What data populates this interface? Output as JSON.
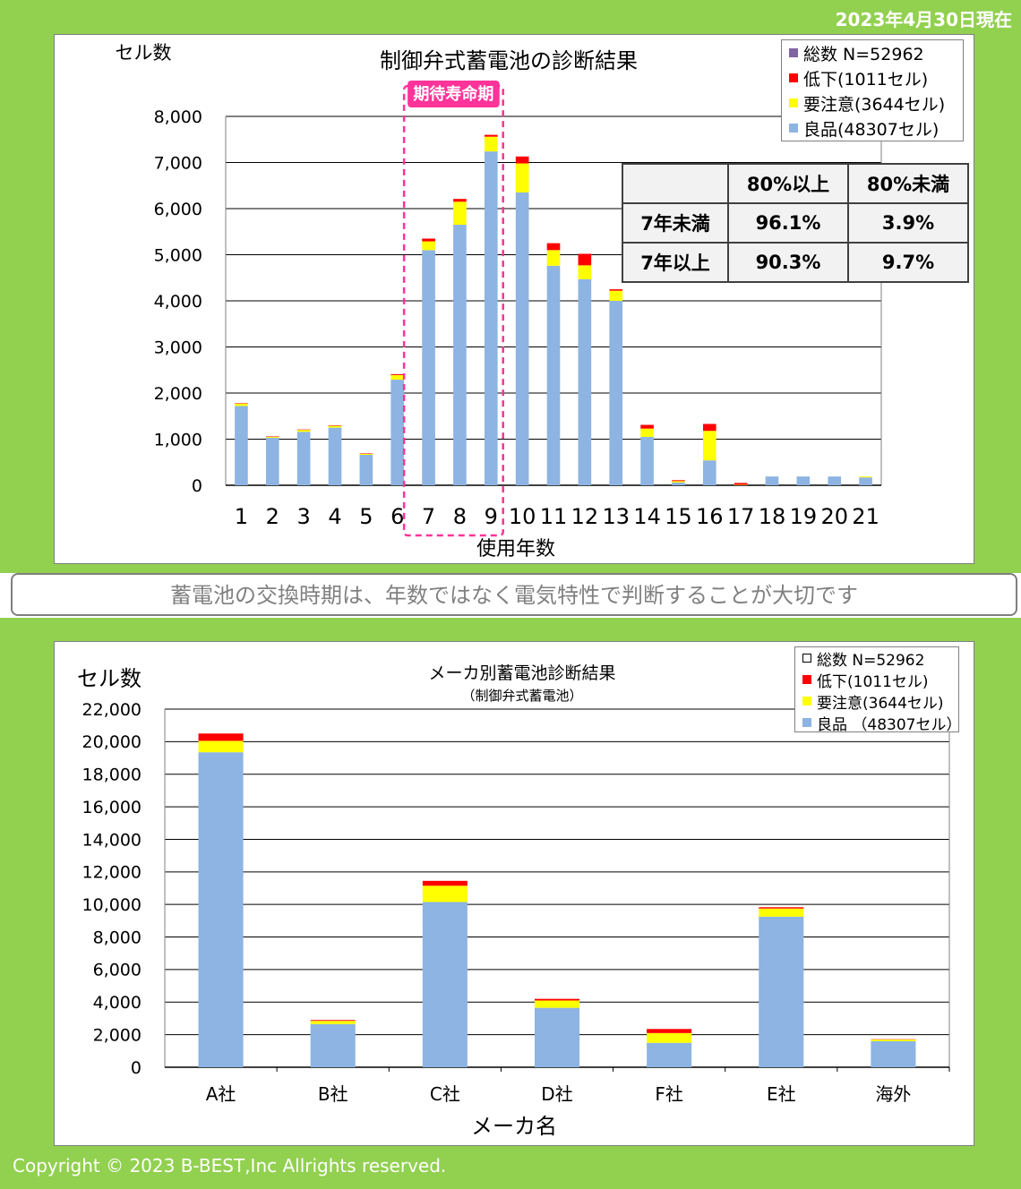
{
  "colors": {
    "frame": "#92d050",
    "good": "#8db4e2",
    "caution": "#ffff00",
    "low": "#ff0000",
    "total": "#8064a2",
    "expected_box": "#ff3399"
  },
  "date_label": "2023年4月30日現在",
  "message": "蓄電池の交換時期は、年数ではなく電気特性で判断することが大切です",
  "copyright": "Copyright © 2023 B-BEST,Inc Allrights reserved.",
  "age_table": {
    "headers": [
      "",
      "80%以上",
      "80%未満"
    ],
    "rows": [
      {
        "label": "7年未満",
        "a": "96.1%",
        "b": "3.9%"
      },
      {
        "label": "7年以上",
        "a": "90.3%",
        "b": "9.7%"
      }
    ]
  },
  "chart_data": [
    {
      "type": "bar",
      "stacked": true,
      "title": "制御弁式蓄電池の診断結果",
      "ylabel": "セル数",
      "xlabel": "使用年数",
      "ylim": [
        0,
        8000
      ],
      "y_ticks": [
        "0",
        "1,000",
        "2,000",
        "3,000",
        "4,000",
        "5,000",
        "6,000",
        "7,000",
        "8,000"
      ],
      "grid": true,
      "annotation": "期待寿命期",
      "annotation_span": [
        "7",
        "9"
      ],
      "legend_position": "top-right",
      "legend": [
        "総数 N=52962",
        "低下(1011セル)",
        "要注意(3644セル)",
        "良品(48307セル)"
      ],
      "categories": [
        "1",
        "2",
        "3",
        "4",
        "5",
        "6",
        "7",
        "8",
        "9",
        "10",
        "11",
        "12",
        "13",
        "14",
        "15",
        "16",
        "17",
        "18",
        "19",
        "20",
        "21"
      ],
      "series": [
        {
          "name": "良品(48307セル)",
          "values": [
            1720,
            1030,
            1160,
            1250,
            660,
            2290,
            5100,
            5650,
            7240,
            6350,
            4760,
            4470,
            4000,
            1050,
            60,
            540,
            0,
            190,
            190,
            190,
            170
          ]
        },
        {
          "name": "要注意(3644セル)",
          "values": [
            50,
            20,
            40,
            40,
            20,
            100,
            190,
            500,
            320,
            630,
            340,
            300,
            220,
            180,
            30,
            640,
            10,
            0,
            0,
            0,
            20
          ]
        },
        {
          "name": "低下(1011セル)",
          "values": [
            10,
            10,
            10,
            10,
            10,
            20,
            60,
            60,
            40,
            150,
            150,
            250,
            30,
            80,
            20,
            150,
            40,
            0,
            0,
            0,
            0
          ]
        }
      ]
    },
    {
      "type": "bar",
      "stacked": true,
      "title": "メーカ別蓄電池診断結果",
      "subtitle": "（制御弁式蓄電池）",
      "ylabel": "セル数",
      "xlabel": "メーカ名",
      "ylim": [
        0,
        22000
      ],
      "y_ticks": [
        "0",
        "2,000",
        "4,000",
        "6,000",
        "8,000",
        "10,000",
        "12,000",
        "14,000",
        "16,000",
        "18,000",
        "20,000",
        "22,000"
      ],
      "grid": true,
      "legend_position": "top-right",
      "legend": [
        "総数 N=52962",
        "低下(1011セル)",
        "要注意(3644セル)",
        "良品 （48307セル）"
      ],
      "categories": [
        "A社",
        "B社",
        "C社",
        "D社",
        "F社",
        "E社",
        "海外"
      ],
      "series": [
        {
          "name": "良品 （48307セル）",
          "values": [
            19350,
            2650,
            10150,
            3650,
            1500,
            9250,
            1600
          ]
        },
        {
          "name": "要注意(3644セル)",
          "values": [
            700,
            200,
            1000,
            450,
            600,
            500,
            100
          ]
        },
        {
          "name": "低下(1011セル)",
          "values": [
            450,
            50,
            300,
            100,
            250,
            80,
            20
          ]
        }
      ]
    }
  ]
}
